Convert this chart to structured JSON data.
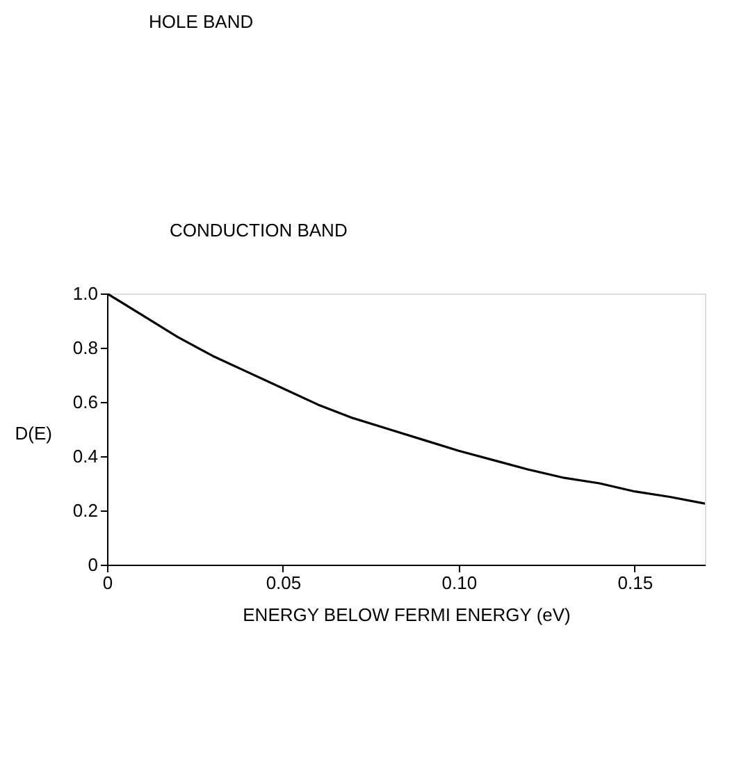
{
  "chart_data": {
    "type": "line",
    "xlabel": "ENERGY BELOW FERMI ENERGY (eV)",
    "ylabel": "D(E)",
    "x": [
      0,
      0.01,
      0.02,
      0.03,
      0.04,
      0.05,
      0.06,
      0.07,
      0.08,
      0.09,
      0.1,
      0.11,
      0.12,
      0.13,
      0.14,
      0.15,
      0.16,
      0.17
    ],
    "series": [
      {
        "color": "#000000",
        "values": [
          1.0,
          0.92,
          0.84,
          0.77,
          0.71,
          0.65,
          0.59,
          0.54,
          0.5,
          0.46,
          0.42,
          0.385,
          0.35,
          0.32,
          0.3,
          0.27,
          0.25,
          0.225
        ]
      }
    ],
    "xlim": [
      0,
      0.17
    ],
    "ylim": [
      0,
      1.0
    ],
    "xticks": [
      0,
      0.05,
      {
        "value": 0.1,
        "label": "0.10"
      },
      0.15
    ],
    "yticks": [
      0,
      0.2,
      0.4,
      0.6,
      0.8,
      {
        "value": 1,
        "label": "1.0"
      }
    ],
    "grid": false,
    "legend": false,
    "marker": "none",
    "line_style": "solid",
    "annotations": [
      "HOLE BAND",
      "CONDUCTION BAND"
    ]
  }
}
